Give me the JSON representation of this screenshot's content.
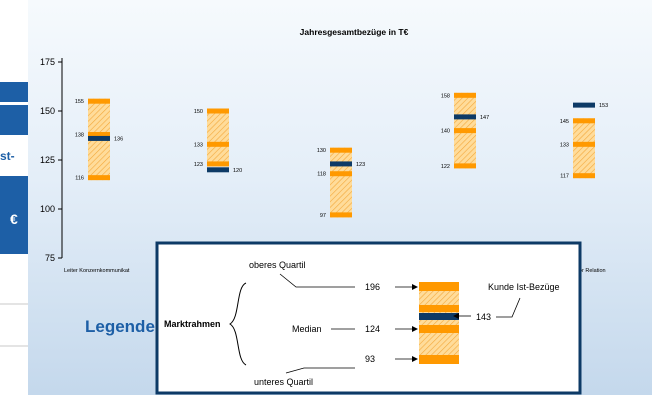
{
  "left_panel": {
    "cells": [
      "st-",
      "€"
    ],
    "colors": {
      "header_bg": "#1d5fa6",
      "header_text": "#ffffff",
      "divider": "#c8c8c8"
    }
  },
  "chart_data": {
    "type": "range",
    "title": "Jahresgesamtbezüge in T€",
    "ylim": [
      75,
      175
    ],
    "yticks": [
      75,
      100,
      125,
      150,
      175
    ],
    "grid": false,
    "categories": [
      "Leiter Konzernkommunikat",
      "",
      "",
      "",
      "Leiter Investor Relation"
    ],
    "series": [
      {
        "upper_quartile": 155,
        "median": 138,
        "lower_quartile": 116,
        "client": 136
      },
      {
        "upper_quartile": 150,
        "median": 133,
        "lower_quartile": 123,
        "client": 120
      },
      {
        "upper_quartile": 130,
        "median": 118,
        "lower_quartile": 97,
        "client": 123
      },
      {
        "upper_quartile": 158,
        "median": 140,
        "lower_quartile": 122,
        "client": 147
      },
      {
        "upper_quartile": 145,
        "median": 133,
        "lower_quartile": 117,
        "client": 153
      }
    ],
    "colors": {
      "quartile": "#ff9900",
      "hatch": "#ffcf7a",
      "client": "#0d3a66",
      "axis": "#000000"
    }
  },
  "legend": {
    "title": "Legende",
    "frame_label": "Marktrahmen",
    "upper_label": "oberes Quartil",
    "median_label": "Median",
    "lower_label": "unteres Quartil",
    "client_label": "Kunde Ist-Bezüge",
    "upper_value": "196",
    "median_value": "124",
    "lower_value": "93",
    "client_value": "143",
    "colors": {
      "title": "#1d5fa6",
      "border": "#0d3a66"
    }
  }
}
